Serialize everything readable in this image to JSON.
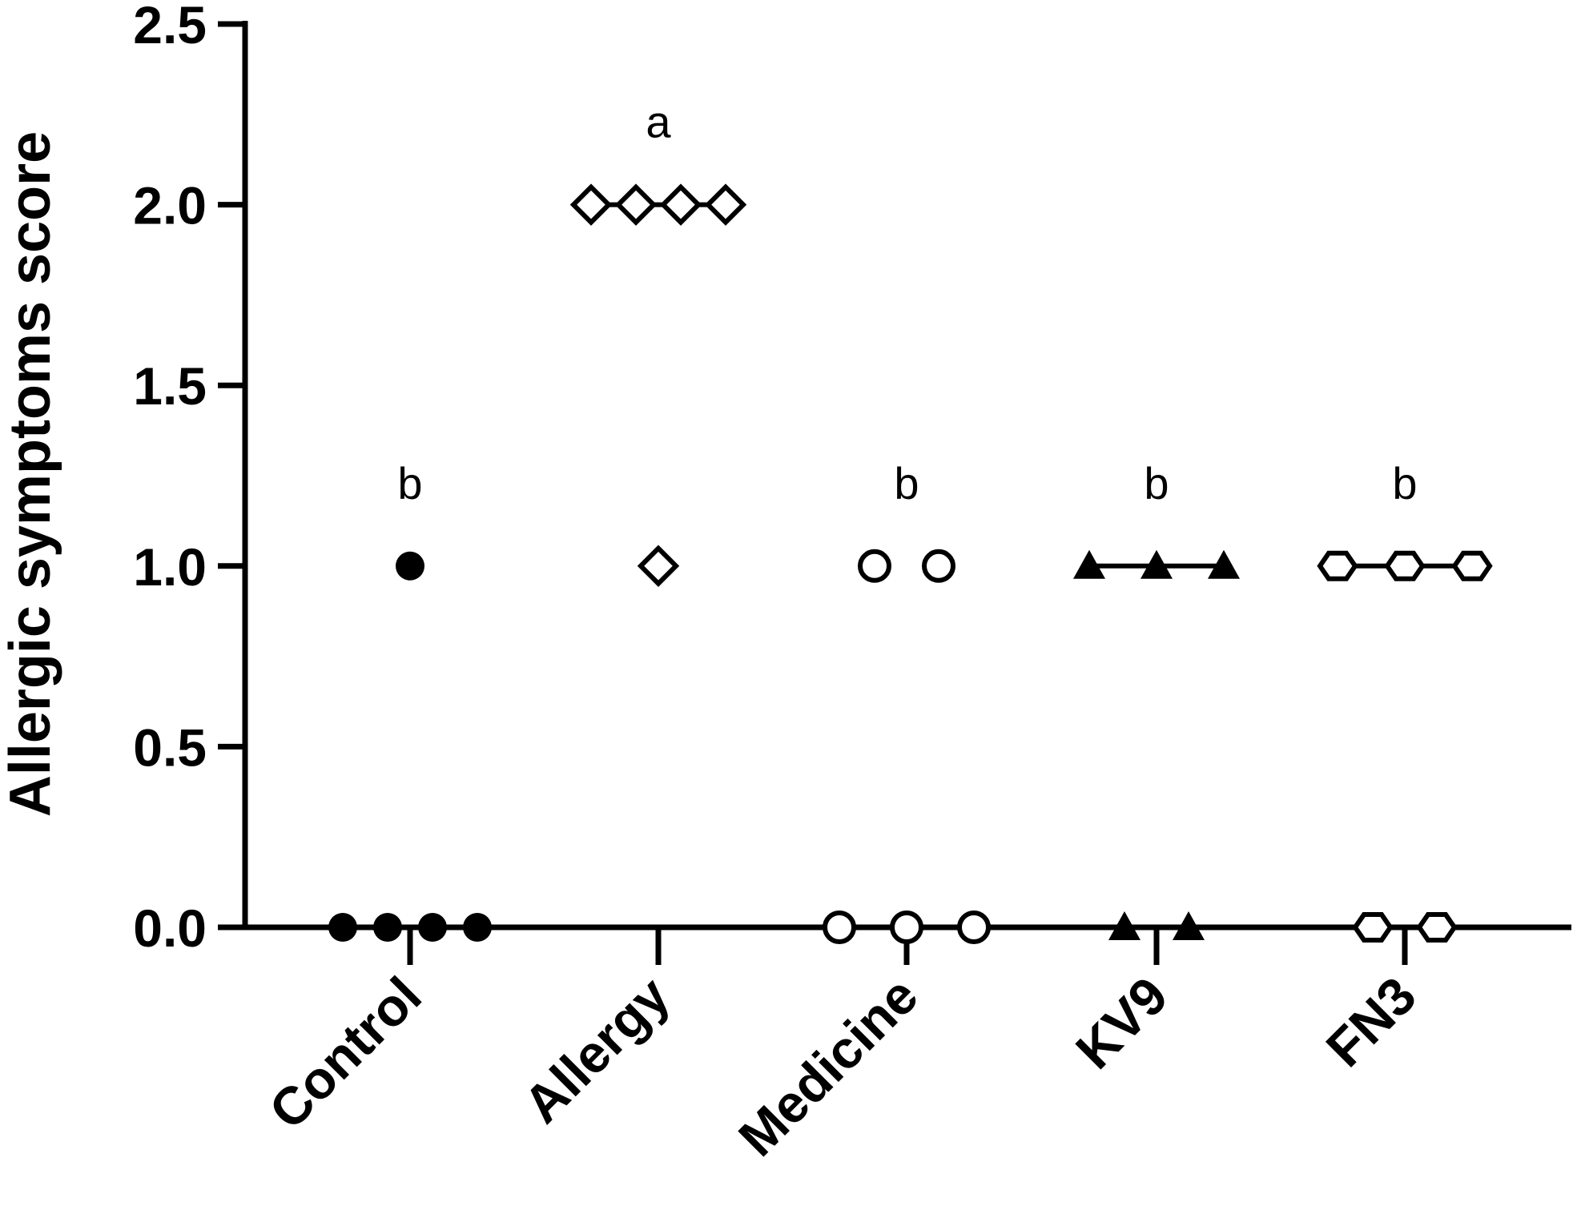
{
  "chart_data": {
    "type": "scatter",
    "title": "",
    "xlabel": "",
    "ylabel": "Allergic symptoms score",
    "ylim": [
      0,
      2.5
    ],
    "yticks": [
      "0.0",
      "0.5",
      "1.0",
      "1.5",
      "2.0",
      "2.5"
    ],
    "grid": false,
    "categories": [
      "Control",
      "Allergy",
      "Medicine",
      "KV9",
      "FN3"
    ],
    "series": [
      {
        "category": "Control",
        "marker": "filled-circle",
        "values": [
          0,
          0,
          0,
          0,
          1
        ],
        "median": 0,
        "significance": "b"
      },
      {
        "category": "Allergy",
        "marker": "open-diamond",
        "values": [
          2,
          2,
          2,
          2,
          1
        ],
        "median": 2,
        "significance": "a"
      },
      {
        "category": "Medicine",
        "marker": "open-circle",
        "values": [
          0,
          0,
          0,
          1,
          1
        ],
        "median": 0,
        "significance": "b"
      },
      {
        "category": "KV9",
        "marker": "filled-triangle",
        "values": [
          1,
          1,
          1,
          0,
          0
        ],
        "median": 1,
        "significance": "b"
      },
      {
        "category": "FN3",
        "marker": "open-hexagon",
        "values": [
          1,
          1,
          1,
          0,
          0
        ],
        "median": 1,
        "significance": "b"
      }
    ]
  }
}
